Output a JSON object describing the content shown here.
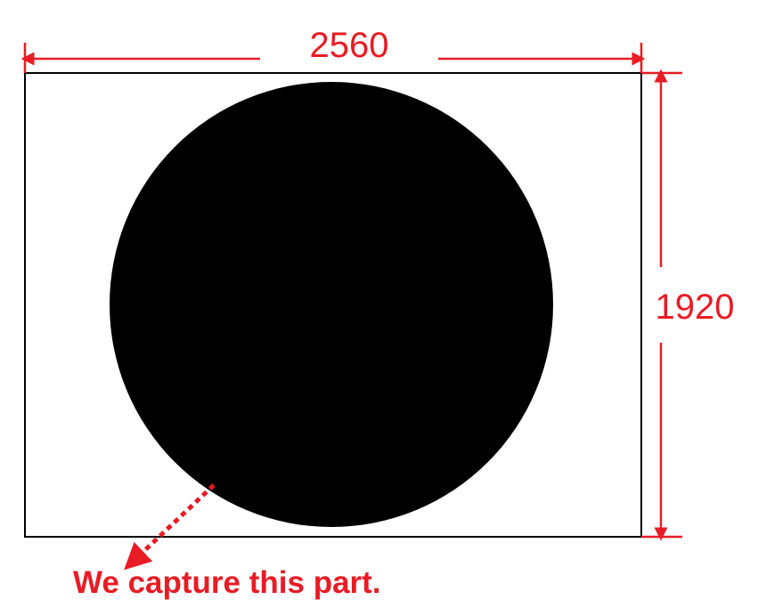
{
  "dimensions": {
    "width_label": "2560",
    "height_label": "1920"
  },
  "caption": {
    "text": "We capture this part."
  },
  "colors": {
    "annotation": "#e81c24",
    "frame": "#000000",
    "circle": "#000000",
    "background": "#ffffff"
  }
}
